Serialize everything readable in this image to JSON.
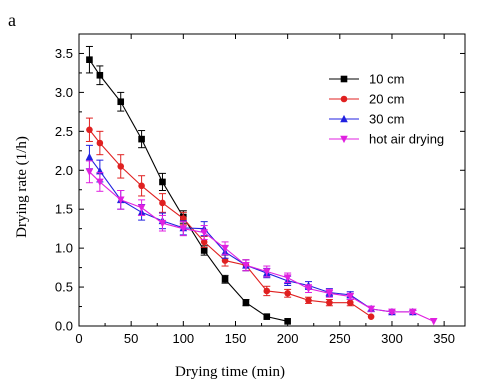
{
  "chart_data": {
    "type": "line",
    "panel_label": "a",
    "title": "",
    "xlabel": "Drying time (min)",
    "ylabel": "Drying rate (1/h)",
    "xlim": [
      0,
      370
    ],
    "ylim": [
      0,
      3.75
    ],
    "xticks": [
      0,
      50,
      100,
      150,
      200,
      250,
      300,
      350
    ],
    "yticks": [
      0.0,
      0.5,
      1.0,
      1.5,
      2.0,
      2.5,
      3.0,
      3.5
    ],
    "ytick_labels": [
      "0.0",
      "0.5",
      "1.0",
      "1.5",
      "2.0",
      "2.5",
      "3.0",
      "3.5"
    ],
    "legend_position": "top-right",
    "grid": false,
    "series": [
      {
        "name": "10 cm",
        "color": "#000000",
        "marker": "square",
        "x": [
          10,
          20,
          40,
          60,
          80,
          100,
          120,
          140,
          160,
          180,
          200
        ],
        "y": [
          3.42,
          3.22,
          2.88,
          2.4,
          1.85,
          1.4,
          0.97,
          0.6,
          0.3,
          0.12,
          0.06
        ],
        "err": [
          0.17,
          0.12,
          0.12,
          0.11,
          0.11,
          0.08,
          0.06,
          0.05,
          0.04,
          0.0,
          0.0
        ]
      },
      {
        "name": "20 cm",
        "color": "#e02020",
        "marker": "circle",
        "x": [
          10,
          20,
          40,
          60,
          80,
          100,
          120,
          140,
          160,
          180,
          200,
          220,
          240,
          260,
          280
        ],
        "y": [
          2.52,
          2.35,
          2.05,
          1.8,
          1.58,
          1.38,
          1.08,
          0.84,
          0.78,
          0.45,
          0.42,
          0.33,
          0.3,
          0.3,
          0.12
        ],
        "err": [
          0.15,
          0.15,
          0.15,
          0.13,
          0.12,
          0.08,
          0.07,
          0.07,
          0.07,
          0.06,
          0.05,
          0.04,
          0.04,
          0.04,
          0.0
        ]
      },
      {
        "name": "30 cm",
        "color": "#2020e0",
        "marker": "triangle-up",
        "x": [
          10,
          20,
          40,
          60,
          80,
          100,
          120,
          140,
          160,
          180,
          200,
          220,
          240,
          260,
          280,
          300,
          320
        ],
        "y": [
          2.17,
          1.99,
          1.62,
          1.46,
          1.35,
          1.26,
          1.25,
          0.95,
          0.78,
          0.68,
          0.58,
          0.52,
          0.43,
          0.4,
          0.22,
          0.18,
          0.18
        ],
        "err": [
          0.15,
          0.14,
          0.12,
          0.1,
          0.1,
          0.09,
          0.09,
          0.08,
          0.07,
          0.06,
          0.06,
          0.05,
          0.05,
          0.04,
          0.03,
          0.02,
          0.02
        ]
      },
      {
        "name": "hot air drying",
        "color": "#e020e0",
        "marker": "triangle-down",
        "x": [
          10,
          20,
          40,
          60,
          80,
          100,
          120,
          140,
          160,
          180,
          200,
          220,
          240,
          260,
          280,
          300,
          320,
          340
        ],
        "y": [
          1.98,
          1.85,
          1.62,
          1.52,
          1.32,
          1.25,
          1.2,
          1.0,
          0.78,
          0.7,
          0.62,
          0.48,
          0.42,
          0.38,
          0.22,
          0.18,
          0.18,
          0.06
        ],
        "err": [
          0.14,
          0.12,
          0.12,
          0.1,
          0.1,
          0.09,
          0.09,
          0.08,
          0.07,
          0.07,
          0.06,
          0.05,
          0.05,
          0.04,
          0.03,
          0.02,
          0.02,
          0.0
        ]
      }
    ]
  }
}
